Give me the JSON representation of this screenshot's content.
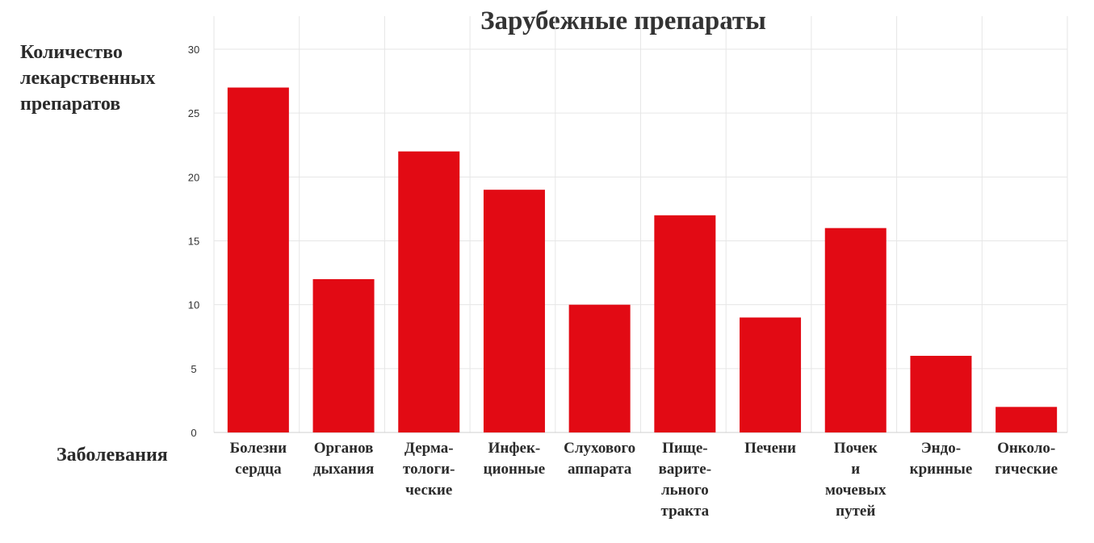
{
  "chart_data": {
    "type": "bar",
    "title": "Зарубежные препараты",
    "ylabel": [
      "Количество",
      "лекарственных",
      "препаратов"
    ],
    "xlabel": "Заболевания",
    "ylim": [
      0,
      30
    ],
    "yticks": [
      0,
      5,
      10,
      15,
      20,
      25,
      30
    ],
    "grid": true,
    "bar_color": "#e20a14",
    "categories": [
      [
        "Болезни",
        "сердца"
      ],
      [
        "Органов",
        "дыхания"
      ],
      [
        "Дерма-",
        "тологи-",
        "ческие"
      ],
      [
        "Инфек-",
        "ционные"
      ],
      [
        "Слухового",
        "аппарата"
      ],
      [
        "Пище-",
        "варите-",
        "льного",
        "тракта"
      ],
      [
        "Печени"
      ],
      [
        "Почек",
        "и",
        "мочевых",
        "путей"
      ],
      [
        "Эндо-",
        "кринные"
      ],
      [
        "Онколо-",
        "гические"
      ]
    ],
    "values": [
      27,
      12,
      22,
      19,
      10,
      17,
      9,
      16,
      6,
      2
    ]
  }
}
